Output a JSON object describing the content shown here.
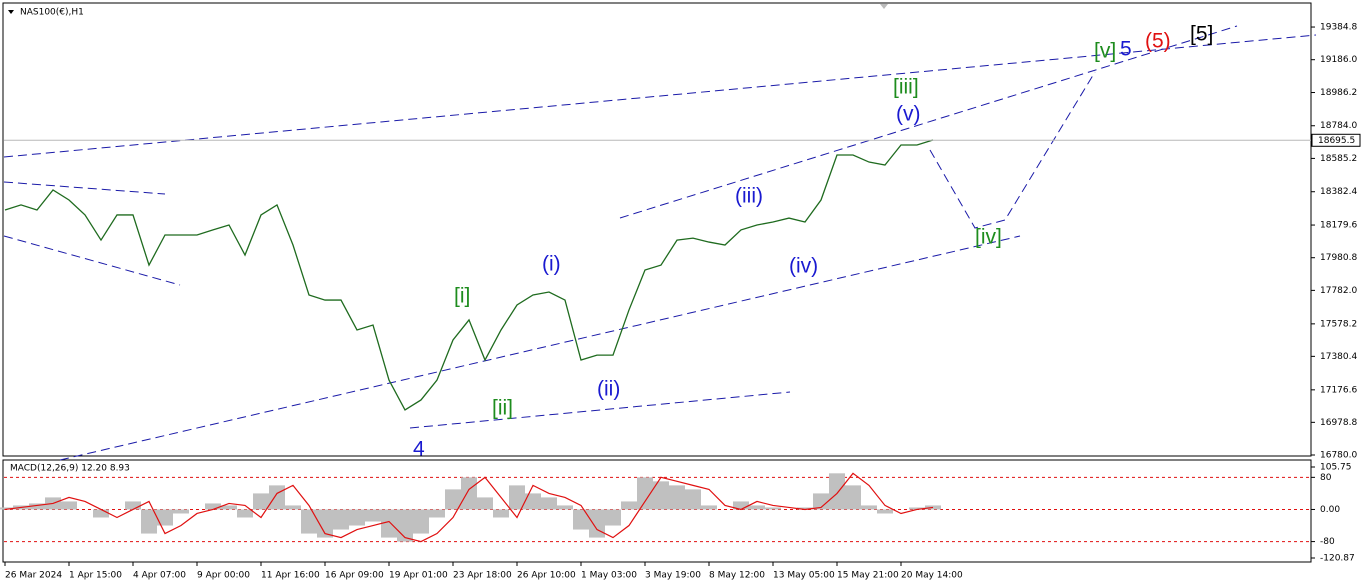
{
  "chart_data": [
    {
      "type": "line",
      "title": "NAS100(€),H1",
      "categories": [
        "26 Mar 2024",
        null,
        null,
        null,
        "1 Apr 15:00",
        null,
        null,
        null,
        "4 Apr 07:00",
        null,
        null,
        null,
        "9 Apr 00:00",
        null,
        null,
        null,
        "11 Apr 16:00",
        null,
        null,
        null,
        "16 Apr 09:00",
        null,
        null,
        null,
        "19 Apr 01:00",
        null,
        null,
        null,
        "23 Apr 18:00",
        null,
        null,
        null,
        "26 Apr 10:00",
        null,
        null,
        null,
        "1 May 03:00",
        null,
        null,
        null,
        "3 May 19:00",
        null,
        null,
        null,
        "8 May 12:00",
        null,
        null,
        null,
        "13 May 05:00",
        null,
        null,
        null,
        "15 May 21:00",
        null,
        null,
        null,
        "20 May 14:00",
        null,
        null
      ],
      "series": [
        {
          "color": "#1f6b1f",
          "values": [
            18271,
            18302,
            18271,
            18393,
            18332,
            18241,
            18088,
            18241,
            18241,
            17936,
            18119,
            18119,
            18119,
            18150,
            18180,
            17997,
            18241,
            18302,
            18058,
            17754,
            17723,
            17723,
            17541,
            17571,
            17236,
            17054,
            17115,
            17236,
            17480,
            17602,
            17358,
            17541,
            17693,
            17754,
            17772,
            17723,
            17358,
            17388,
            17388,
            17663,
            17906,
            17936,
            18088,
            18100,
            18076,
            18058,
            18150,
            18180,
            18198,
            18222,
            18198,
            18332,
            18606,
            18606,
            18563,
            18545,
            18667,
            18667,
            18697
          ]
        }
      ],
      "ylim": [
        16780,
        19525
      ],
      "yticks": [
        19384.8,
        {
          "value": 19186,
          "label": "19186.0"
        },
        18986.2,
        {
          "value": 18784,
          "label": "18784.0"
        },
        18585.2,
        18382.4,
        18179.6,
        17980.8,
        {
          "value": 17782,
          "label": "17782.0"
        },
        17578.2,
        17380.4,
        17176.6,
        16978.8,
        {
          "value": 16780,
          "label": "16780.0"
        }
      ],
      "last_price": 18695.5,
      "annotations": [
        {
          "text": "[iii]",
          "color": "#1e8c1e"
        },
        {
          "text": "(v)",
          "color": "#1a1ad0"
        },
        {
          "text": "(iii)",
          "color": "#1a1ad0"
        },
        {
          "text": "(iv)",
          "color": "#1a1ad0"
        },
        {
          "text": "[iv]",
          "color": "#1e8c1e"
        },
        {
          "text": "(i)",
          "color": "#1a1ad0"
        },
        {
          "text": "[i]",
          "color": "#1e8c1e"
        },
        {
          "text": "(ii)",
          "color": "#1a1ad0"
        },
        {
          "text": "[ii]",
          "color": "#1e8c1e"
        },
        {
          "text": "4",
          "color": "#1a1ad0"
        },
        {
          "text": "[v]",
          "color": "#1e8c1e"
        },
        {
          "text": "5",
          "color": "#1a1ad0"
        },
        {
          "text": "(5)",
          "color": "#e01010"
        },
        {
          "text": "[5]",
          "color": "#000000"
        }
      ]
    },
    {
      "type": "macd",
      "title": "MACD(12,26,9) 12.20 8.93",
      "series": [
        {
          "color": "#c0c0c0",
          "values": [
            5,
            10,
            15,
            30,
            20,
            0,
            -20,
            0,
            20,
            -60,
            -40,
            -10,
            0,
            15,
            10,
            -20,
            40,
            60,
            10,
            -60,
            -70,
            -50,
            -40,
            -30,
            -70,
            -80,
            -60,
            -20,
            50,
            80,
            30,
            -20,
            60,
            40,
            30,
            10,
            -50,
            -70,
            -40,
            20,
            80,
            70,
            60,
            50,
            10,
            0,
            20,
            10,
            5,
            0,
            5,
            40,
            90,
            60,
            10,
            -10,
            0,
            5,
            10
          ]
        },
        {
          "color": "#e01010",
          "values": [
            0,
            5,
            10,
            15,
            30,
            20,
            0,
            -20,
            0,
            20,
            -60,
            -40,
            -10,
            0,
            15,
            10,
            -20,
            40,
            60,
            10,
            -60,
            -70,
            -50,
            -40,
            -30,
            -70,
            -80,
            -60,
            -20,
            50,
            80,
            30,
            -20,
            60,
            40,
            30,
            10,
            -50,
            -70,
            -40,
            20,
            80,
            70,
            60,
            50,
            10,
            0,
            20,
            10,
            5,
            0,
            5,
            40,
            90,
            60,
            10,
            -10,
            0,
            5
          ]
        }
      ],
      "ylim": [
        -120.87,
        105.75
      ],
      "yticks": [
        105.75,
        80,
        {
          "value": 0,
          "label": "0.00"
        },
        -80,
        -120.87
      ]
    }
  ]
}
